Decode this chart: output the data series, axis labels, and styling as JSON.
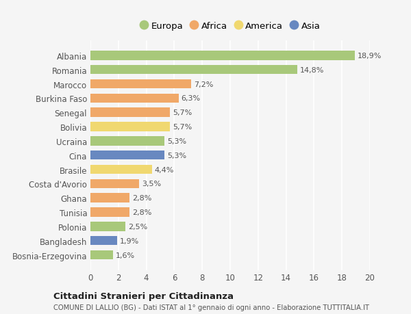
{
  "countries": [
    "Albania",
    "Romania",
    "Marocco",
    "Burkina Faso",
    "Senegal",
    "Bolivia",
    "Ucraina",
    "Cina",
    "Brasile",
    "Costa d'Avorio",
    "Ghana",
    "Tunisia",
    "Polonia",
    "Bangladesh",
    "Bosnia-Erzegovina"
  ],
  "values": [
    18.9,
    14.8,
    7.2,
    6.3,
    5.7,
    5.7,
    5.3,
    5.3,
    4.4,
    3.5,
    2.8,
    2.8,
    2.5,
    1.9,
    1.6
  ],
  "labels": [
    "18,9%",
    "14,8%",
    "7,2%",
    "6,3%",
    "5,7%",
    "5,7%",
    "5,3%",
    "5,3%",
    "4,4%",
    "3,5%",
    "2,8%",
    "2,8%",
    "2,5%",
    "1,9%",
    "1,6%"
  ],
  "continents": [
    "Europa",
    "Europa",
    "Africa",
    "Africa",
    "Africa",
    "America",
    "Europa",
    "Asia",
    "America",
    "Africa",
    "Africa",
    "Africa",
    "Europa",
    "Asia",
    "Europa"
  ],
  "colors": {
    "Europa": "#a8c87a",
    "Africa": "#f0a868",
    "America": "#f0d870",
    "Asia": "#6888c0"
  },
  "xlim": [
    0,
    20
  ],
  "xticks": [
    0,
    2,
    4,
    6,
    8,
    10,
    12,
    14,
    16,
    18,
    20
  ],
  "title": "Cittadini Stranieri per Cittadinanza",
  "subtitle": "COMUNE DI LALLIO (BG) - Dati ISTAT al 1° gennaio di ogni anno - Elaborazione TUTTITALIA.IT",
  "background_color": "#f5f5f5",
  "grid_color": "#ffffff",
  "bar_height": 0.65,
  "legend_order": [
    "Europa",
    "Africa",
    "America",
    "Asia"
  ]
}
